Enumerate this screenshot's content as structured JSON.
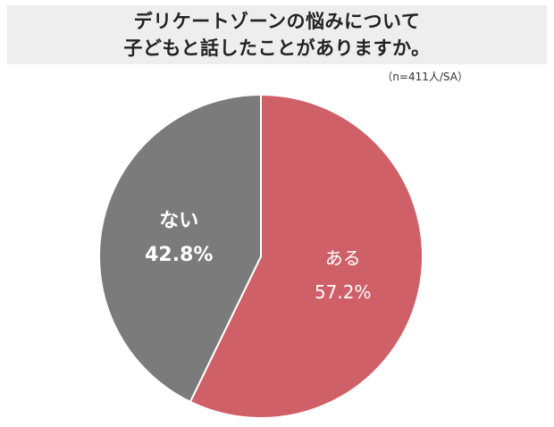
{
  "header": {
    "title_line1": "デリケートゾーンの悩みについて",
    "title_line2": "子どもと話したことがありますか。"
  },
  "note": "（n=411人/SA）",
  "chart_data": {
    "type": "pie",
    "title": "デリケートゾーンの悩みについて子どもと話したことがありますか。",
    "slices": [
      {
        "label": "ある",
        "value": 57.2,
        "value_label": "57.2%",
        "color": "#d06068"
      },
      {
        "label": "ない",
        "value": 42.8,
        "value_label": "42.8%",
        "color": "#7b7b7b"
      }
    ]
  }
}
